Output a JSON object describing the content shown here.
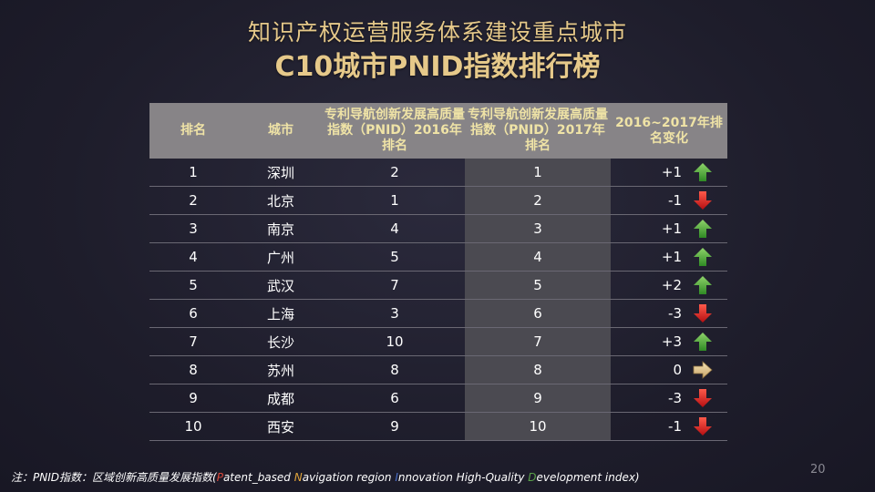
{
  "title": {
    "line1": "知识产权运营服务体系建设重点城市",
    "line2": "C10城市PNID指数排行榜"
  },
  "table": {
    "headers": {
      "rank": "排名",
      "city": "城市",
      "y2016": "专利导航创新发展高质量指数（PNID）2016年排名",
      "y2017": "专利导航创新发展高质量指数（PNID）2017年排名",
      "change": "2016~2017年排名变化"
    },
    "rows": [
      {
        "rank": "1",
        "city": "深圳",
        "y2016": "2",
        "y2017": "1",
        "change": "+1",
        "dir": "up"
      },
      {
        "rank": "2",
        "city": "北京",
        "y2016": "1",
        "y2017": "2",
        "change": "-1",
        "dir": "down"
      },
      {
        "rank": "3",
        "city": "南京",
        "y2016": "4",
        "y2017": "3",
        "change": "+1",
        "dir": "up"
      },
      {
        "rank": "4",
        "city": "广州",
        "y2016": "5",
        "y2017": "4",
        "change": "+1",
        "dir": "up"
      },
      {
        "rank": "5",
        "city": "武汉",
        "y2016": "7",
        "y2017": "5",
        "change": "+2",
        "dir": "up"
      },
      {
        "rank": "6",
        "city": "上海",
        "y2016": "3",
        "y2017": "6",
        "change": "-3",
        "dir": "down"
      },
      {
        "rank": "7",
        "city": "长沙",
        "y2016": "10",
        "y2017": "7",
        "change": "+3",
        "dir": "up"
      },
      {
        "rank": "8",
        "city": "苏州",
        "y2016": "8",
        "y2017": "8",
        "change": "0",
        "dir": "right"
      },
      {
        "rank": "9",
        "city": "成都",
        "y2016": "6",
        "y2017": "9",
        "change": "-3",
        "dir": "down"
      },
      {
        "rank": "10",
        "city": "西安",
        "y2016": "9",
        "y2017": "10",
        "change": "-1",
        "dir": "down"
      }
    ]
  },
  "note": {
    "prefix": "注：PNID指数：区域创新高质量发展指数(",
    "p_letter": "P",
    "p_rest": "atent_based ",
    "n_letter": "N",
    "n_rest": "avigation region ",
    "i_letter": "I",
    "i_rest": "nnovation High-Quality ",
    "d_letter": "D",
    "d_rest": "evelopment index)"
  },
  "page_number": "20",
  "colors": {
    "title": "#e6c98a",
    "header_bg": "#878487",
    "header_text": "#efe3a6",
    "col2017_bg": "#4b4a51",
    "up_arrow": "#4fa83b",
    "down_arrow": "#d3201f",
    "flat_arrow": "#e7c98d"
  },
  "icons": {
    "up": "arrow-up-icon",
    "down": "arrow-down-icon",
    "right": "arrow-right-icon"
  }
}
